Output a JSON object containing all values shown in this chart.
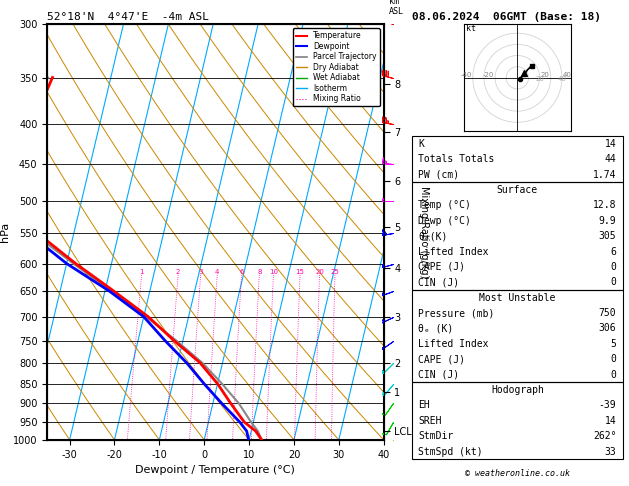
{
  "title_left": "52°18'N  4°47'E  -4m ASL",
  "title_right": "08.06.2024  06GMT (Base: 18)",
  "xlabel": "Dewpoint / Temperature (°C)",
  "ylabel_left": "hPa",
  "pressure_levels": [
    300,
    350,
    400,
    450,
    500,
    550,
    600,
    650,
    700,
    750,
    800,
    850,
    900,
    950,
    1000
  ],
  "km_labels": [
    "8",
    "7",
    "6",
    "5",
    "4",
    "3",
    "2",
    "1",
    "LCL"
  ],
  "km_pressures": [
    357,
    410,
    472,
    540,
    608,
    700,
    800,
    870,
    975
  ],
  "xlim": [
    -35,
    40
  ],
  "p_min": 300,
  "p_max": 1000,
  "skew_factor": 22,
  "isotherm_temps": [
    -40,
    -30,
    -20,
    -10,
    0,
    10,
    20,
    30,
    40
  ],
  "isotherm_color": "#00aaff",
  "dry_adiabat_color": "#cc8800",
  "wet_adiabat_color": "#00aa00",
  "mixing_ratio_color": "#ff00aa",
  "mixing_ratio_vals": [
    1,
    2,
    3,
    4,
    6,
    8,
    10,
    15,
    20,
    25
  ],
  "temperature_profile_T": [
    12.8,
    11.0,
    8.0,
    4.0,
    0.0,
    -5.0,
    -12.0,
    -19.0,
    -28.0,
    -38.0,
    -48.0,
    -56.0,
    -58.0,
    -55.0,
    -53.0
  ],
  "temperature_profile_P": [
    1000,
    975,
    950,
    900,
    850,
    800,
    750,
    700,
    650,
    600,
    550,
    500,
    450,
    400,
    350
  ],
  "dewpoint_profile_T": [
    9.9,
    9.0,
    7.0,
    2.0,
    -3.0,
    -8.0,
    -14.0,
    -20.0,
    -29.0,
    -40.0,
    -50.0,
    -58.0,
    -60.0,
    -62.0,
    -60.0
  ],
  "dewpoint_profile_P": [
    1000,
    975,
    950,
    900,
    850,
    800,
    750,
    700,
    650,
    600,
    550,
    500,
    450,
    400,
    350
  ],
  "parcel_T": [
    12.8,
    11.5,
    9.5,
    5.8,
    1.0,
    -4.5,
    -11.5,
    -19.5,
    -28.5,
    -38.5,
    -49.0,
    -57.0,
    -57.5,
    -56.0,
    -54.0
  ],
  "parcel_P": [
    1000,
    975,
    950,
    900,
    850,
    800,
    750,
    700,
    650,
    600,
    550,
    500,
    450,
    400,
    350
  ],
  "temp_color": "#ff0000",
  "dewp_color": "#0000ff",
  "parcel_color": "#888888",
  "barb_pressures": [
    300,
    350,
    400,
    450,
    500,
    550,
    600,
    650,
    700,
    750,
    800,
    850,
    900,
    950,
    1000
  ],
  "barb_speeds": [
    90,
    80,
    75,
    65,
    55,
    45,
    35,
    30,
    25,
    20,
    18,
    15,
    12,
    8,
    5
  ],
  "barb_dirs": [
    290,
    285,
    280,
    275,
    270,
    260,
    255,
    250,
    245,
    235,
    225,
    220,
    215,
    210,
    200
  ],
  "barb_colors": {
    "300": "#ff0000",
    "350": "#ff0000",
    "400": "#ff0000",
    "450": "#ff00ff",
    "500": "#ff00ff",
    "550": "#0000ff",
    "600": "#0000ff",
    "650": "#0000ff",
    "700": "#0000ff",
    "750": "#0000ff",
    "800": "#00cccc",
    "850": "#00cccc",
    "900": "#00cc00",
    "950": "#00cc00",
    "1000": "#cccc00"
  },
  "hodo_u": [
    2,
    3,
    5,
    7,
    9,
    11,
    13
  ],
  "hodo_v": [
    -1,
    0,
    2,
    4,
    7,
    9,
    11
  ],
  "stats": {
    "K": 14,
    "Totals_Totals": 44,
    "PW_cm": 1.74,
    "Surface_Temp": 12.8,
    "Surface_Dewp": 9.9,
    "Surface_theta_e": 305,
    "Surface_Lifted_Index": 6,
    "Surface_CAPE": 0,
    "Surface_CIN": 0,
    "MU_Pressure": 750,
    "MU_theta_e": 306,
    "MU_Lifted_Index": 5,
    "MU_CAPE": 0,
    "MU_CIN": 0,
    "EH": -39,
    "SREH": 14,
    "StmDir": 262,
    "StmSpd_kt": 33
  }
}
